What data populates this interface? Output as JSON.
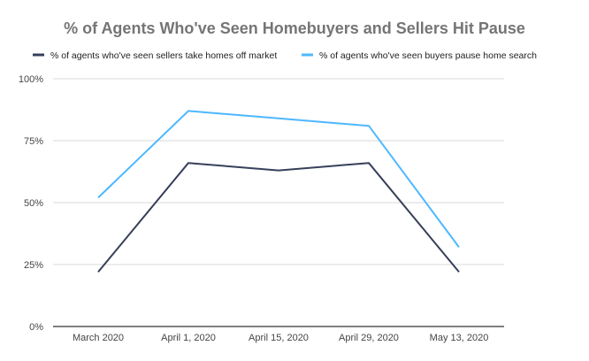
{
  "chart_data": {
    "type": "line",
    "title": "% of Agents Who've Seen Homebuyers and Sellers Hit Pause",
    "xlabel": "",
    "ylabel": "",
    "categories": [
      "March 2020",
      "April 1, 2020",
      "April 15, 2020",
      "April 29, 2020",
      "May 13, 2020"
    ],
    "ylim": [
      0,
      100
    ],
    "yticks": [
      0,
      25,
      50,
      75,
      100
    ],
    "ytick_labels": [
      "0%",
      "25%",
      "50%",
      "75%",
      "100%"
    ],
    "grid": true,
    "legend_position": "top",
    "series": [
      {
        "name": "% of agents who've seen sellers take homes off market",
        "color": "#37405a",
        "values": [
          22,
          66,
          63,
          66,
          22
        ]
      },
      {
        "name": "% of agents who've seen buyers pause home search",
        "color": "#4db8ff",
        "values": [
          52,
          87,
          84,
          81,
          32
        ]
      }
    ]
  }
}
